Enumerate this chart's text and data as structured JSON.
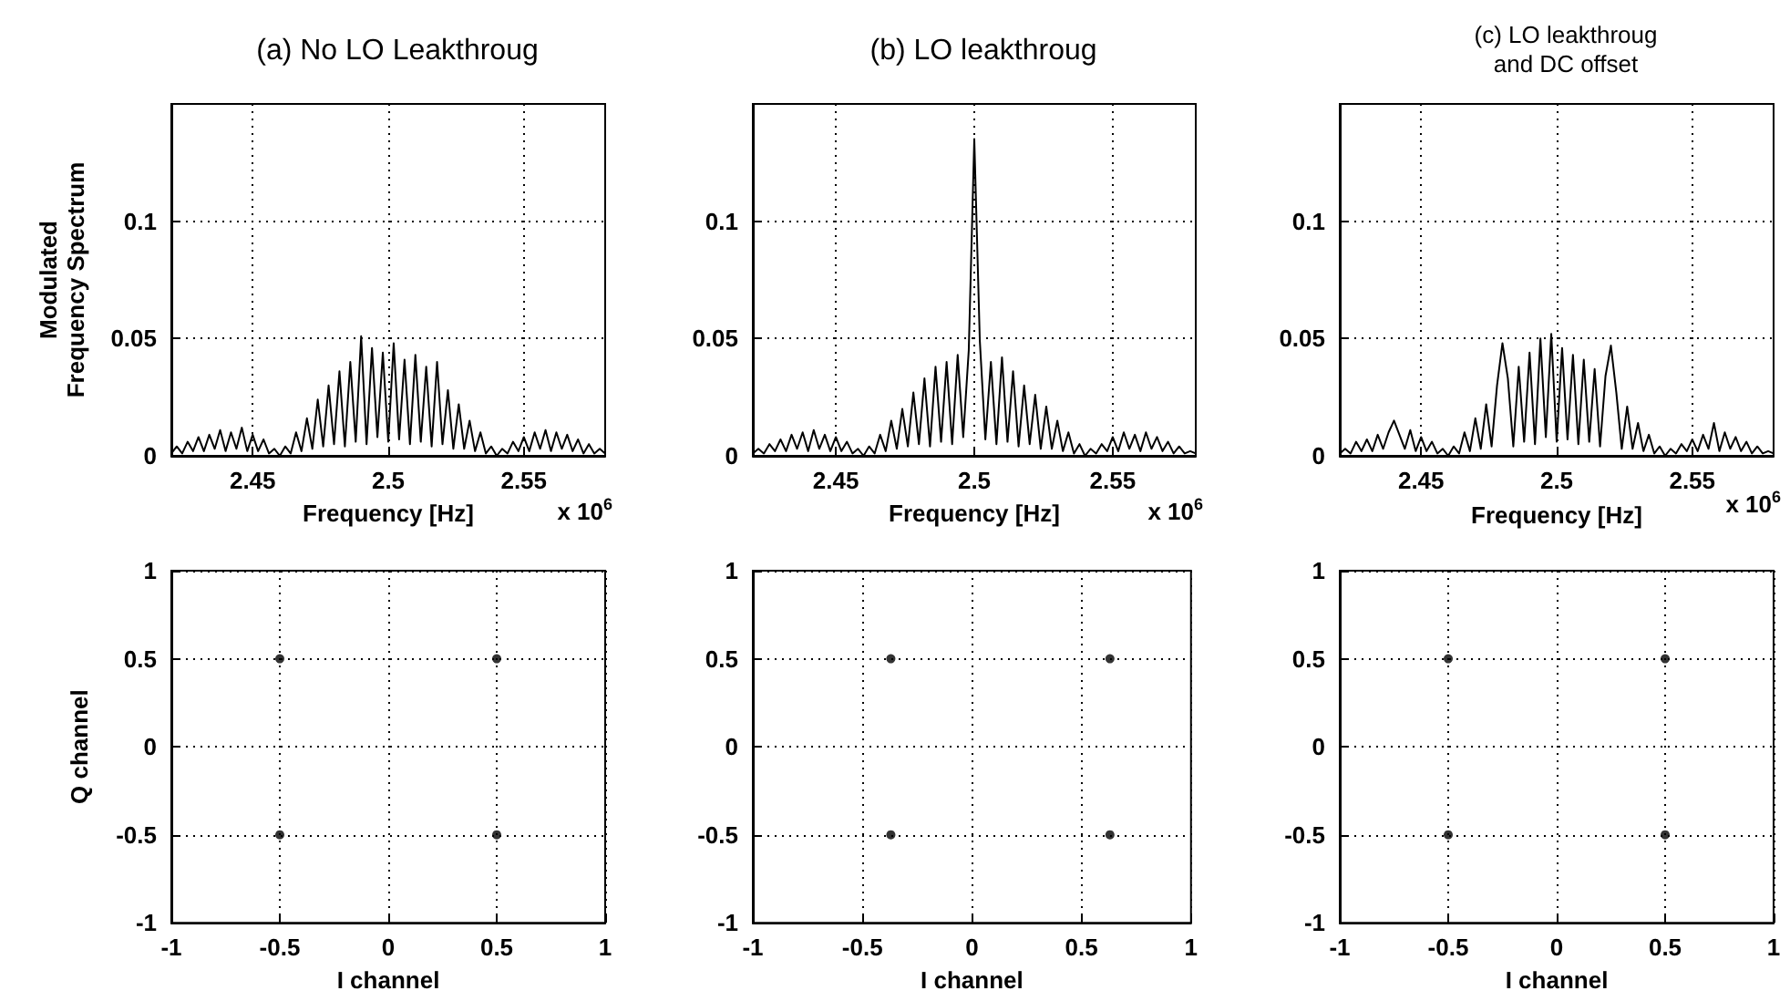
{
  "chart_data": [
    {
      "type": "line",
      "title": "(a) No LO Leakthroug",
      "xlabel": "Frequency [Hz]",
      "ylabel": "Modulated\nFrequency Spectrum",
      "annotations": [
        "x 10$^{6}$"
      ],
      "xlim": [
        2.42,
        2.58
      ],
      "xticks": [
        2.45,
        2.5,
        2.55
      ],
      "ylim": [
        0,
        0.15
      ],
      "yticks": [
        0,
        0.05,
        0.1
      ],
      "grid": true,
      "series": [
        {
          "color": "#000000",
          "x": [
            2.42,
            2.422,
            2.424,
            2.426,
            2.428,
            2.43,
            2.432,
            2.434,
            2.436,
            2.438,
            2.44,
            2.442,
            2.444,
            2.446,
            2.448,
            2.45,
            2.452,
            2.454,
            2.456,
            2.458,
            2.46,
            2.462,
            2.464,
            2.466,
            2.468,
            2.47,
            2.472,
            2.474,
            2.476,
            2.478,
            2.48,
            2.482,
            2.484,
            2.486,
            2.488,
            2.49,
            2.492,
            2.494,
            2.496,
            2.498,
            2.5,
            2.502,
            2.504,
            2.506,
            2.508,
            2.51,
            2.512,
            2.514,
            2.516,
            2.518,
            2.52,
            2.522,
            2.524,
            2.526,
            2.528,
            2.53,
            2.532,
            2.534,
            2.536,
            2.538,
            2.54,
            2.542,
            2.544,
            2.546,
            2.548,
            2.55,
            2.552,
            2.554,
            2.556,
            2.558,
            2.56,
            2.562,
            2.564,
            2.566,
            2.568,
            2.57,
            2.572,
            2.574,
            2.576,
            2.578,
            2.58
          ],
          "values": [
            0.001,
            0.004,
            0.001,
            0.006,
            0.002,
            0.008,
            0.002,
            0.009,
            0.003,
            0.011,
            0.002,
            0.01,
            0.003,
            0.012,
            0.002,
            0.009,
            0.002,
            0.007,
            0.001,
            0.003,
            0.0,
            0.004,
            0.001,
            0.01,
            0.002,
            0.016,
            0.003,
            0.024,
            0.004,
            0.03,
            0.005,
            0.036,
            0.004,
            0.04,
            0.006,
            0.051,
            0.005,
            0.046,
            0.008,
            0.044,
            0.006,
            0.048,
            0.007,
            0.041,
            0.005,
            0.043,
            0.006,
            0.038,
            0.004,
            0.04,
            0.005,
            0.028,
            0.003,
            0.022,
            0.003,
            0.015,
            0.002,
            0.01,
            0.001,
            0.004,
            0.0,
            0.003,
            0.001,
            0.006,
            0.002,
            0.008,
            0.002,
            0.01,
            0.003,
            0.011,
            0.002,
            0.01,
            0.003,
            0.009,
            0.002,
            0.007,
            0.001,
            0.005,
            0.001,
            0.003,
            0.001
          ]
        }
      ]
    },
    {
      "type": "line",
      "title": "(b) LO leakthroug",
      "xlabel": "Frequency [Hz]",
      "annotations": [
        "x 10$^{6}$"
      ],
      "xlim": [
        2.42,
        2.58
      ],
      "xticks": [
        2.45,
        2.5,
        2.55
      ],
      "ylim": [
        0,
        0.15
      ],
      "yticks": [
        0,
        0.05,
        0.1
      ],
      "grid": true,
      "series": [
        {
          "color": "#000000",
          "x": [
            2.42,
            2.422,
            2.424,
            2.426,
            2.428,
            2.43,
            2.432,
            2.434,
            2.436,
            2.438,
            2.44,
            2.442,
            2.444,
            2.446,
            2.448,
            2.45,
            2.452,
            2.454,
            2.456,
            2.458,
            2.46,
            2.462,
            2.464,
            2.466,
            2.468,
            2.47,
            2.472,
            2.474,
            2.476,
            2.478,
            2.48,
            2.482,
            2.484,
            2.486,
            2.488,
            2.49,
            2.492,
            2.494,
            2.496,
            2.498,
            2.5,
            2.502,
            2.504,
            2.506,
            2.508,
            2.51,
            2.512,
            2.514,
            2.516,
            2.518,
            2.52,
            2.522,
            2.524,
            2.526,
            2.528,
            2.53,
            2.532,
            2.534,
            2.536,
            2.538,
            2.54,
            2.542,
            2.544,
            2.546,
            2.548,
            2.55,
            2.552,
            2.554,
            2.556,
            2.558,
            2.56,
            2.562,
            2.564,
            2.566,
            2.568,
            2.57,
            2.572,
            2.574,
            2.576,
            2.578,
            2.58
          ],
          "values": [
            0.001,
            0.003,
            0.001,
            0.005,
            0.002,
            0.007,
            0.002,
            0.009,
            0.003,
            0.01,
            0.002,
            0.011,
            0.003,
            0.009,
            0.002,
            0.008,
            0.002,
            0.006,
            0.001,
            0.003,
            0.0,
            0.004,
            0.001,
            0.009,
            0.002,
            0.015,
            0.003,
            0.02,
            0.004,
            0.027,
            0.005,
            0.033,
            0.004,
            0.038,
            0.006,
            0.04,
            0.005,
            0.043,
            0.008,
            0.045,
            0.135,
            0.049,
            0.007,
            0.04,
            0.005,
            0.042,
            0.006,
            0.036,
            0.004,
            0.03,
            0.005,
            0.026,
            0.003,
            0.021,
            0.003,
            0.015,
            0.002,
            0.01,
            0.001,
            0.005,
            0.0,
            0.003,
            0.001,
            0.005,
            0.002,
            0.008,
            0.002,
            0.01,
            0.003,
            0.009,
            0.002,
            0.01,
            0.003,
            0.008,
            0.002,
            0.006,
            0.001,
            0.004,
            0.001,
            0.002,
            0.001
          ]
        }
      ]
    },
    {
      "type": "line",
      "title": "(c) LO leakthroug\nand DC offset",
      "xlabel": "Frequency [Hz]",
      "annotations": [
        "x 10$^{6}$"
      ],
      "xlim": [
        2.42,
        2.58
      ],
      "xticks": [
        2.45,
        2.5,
        2.55
      ],
      "ylim": [
        0,
        0.15
      ],
      "yticks": [
        0,
        0.05,
        0.1
      ],
      "grid": true,
      "series": [
        {
          "color": "#000000",
          "x": [
            2.42,
            2.422,
            2.424,
            2.426,
            2.428,
            2.43,
            2.432,
            2.434,
            2.436,
            2.438,
            2.44,
            2.442,
            2.444,
            2.446,
            2.448,
            2.45,
            2.452,
            2.454,
            2.456,
            2.458,
            2.46,
            2.462,
            2.464,
            2.466,
            2.468,
            2.47,
            2.472,
            2.474,
            2.476,
            2.478,
            2.48,
            2.482,
            2.484,
            2.486,
            2.488,
            2.49,
            2.492,
            2.494,
            2.496,
            2.498,
            2.5,
            2.502,
            2.504,
            2.506,
            2.508,
            2.51,
            2.512,
            2.514,
            2.516,
            2.518,
            2.52,
            2.522,
            2.524,
            2.526,
            2.528,
            2.53,
            2.532,
            2.534,
            2.536,
            2.538,
            2.54,
            2.542,
            2.544,
            2.546,
            2.548,
            2.55,
            2.552,
            2.554,
            2.556,
            2.558,
            2.56,
            2.562,
            2.564,
            2.566,
            2.568,
            2.57,
            2.572,
            2.574,
            2.576,
            2.578,
            2.58
          ],
          "values": [
            0.001,
            0.003,
            0.001,
            0.006,
            0.002,
            0.007,
            0.002,
            0.009,
            0.003,
            0.01,
            0.015,
            0.009,
            0.003,
            0.011,
            0.002,
            0.008,
            0.002,
            0.006,
            0.001,
            0.003,
            0.0,
            0.004,
            0.001,
            0.01,
            0.002,
            0.016,
            0.003,
            0.022,
            0.004,
            0.03,
            0.048,
            0.033,
            0.004,
            0.038,
            0.006,
            0.044,
            0.005,
            0.05,
            0.008,
            0.052,
            0.006,
            0.046,
            0.007,
            0.043,
            0.005,
            0.041,
            0.006,
            0.037,
            0.004,
            0.034,
            0.047,
            0.027,
            0.003,
            0.021,
            0.003,
            0.014,
            0.002,
            0.009,
            0.001,
            0.004,
            0.0,
            0.003,
            0.001,
            0.005,
            0.002,
            0.007,
            0.002,
            0.009,
            0.003,
            0.014,
            0.002,
            0.01,
            0.003,
            0.008,
            0.002,
            0.006,
            0.001,
            0.004,
            0.001,
            0.002,
            0.001
          ]
        }
      ]
    },
    {
      "type": "scatter",
      "xlabel": "I channel",
      "ylabel": "Q channel",
      "marker": "circle",
      "xlim": [
        -1,
        1
      ],
      "xticks": [
        -1,
        -0.5,
        0,
        0.5,
        1
      ],
      "ylim": [
        -1,
        1
      ],
      "yticks": [
        -1,
        -0.5,
        0,
        0.5,
        1
      ],
      "grid": true,
      "series": [
        {
          "color": "#000000",
          "x": [
            -0.5,
            0.5,
            -0.5,
            0.5
          ],
          "values": [
            0.5,
            0.5,
            -0.5,
            -0.5
          ]
        }
      ]
    },
    {
      "type": "scatter",
      "xlabel": "I channel",
      "marker": "circle",
      "xlim": [
        -1,
        1
      ],
      "xticks": [
        -1,
        -0.5,
        0,
        0.5,
        1
      ],
      "ylim": [
        -1,
        1
      ],
      "yticks": [
        -1,
        -0.5,
        0,
        0.5,
        1
      ],
      "grid": true,
      "series": [
        {
          "color": "#000000",
          "x": [
            -0.37,
            0.63,
            -0.37,
            0.63
          ],
          "values": [
            0.5,
            0.5,
            -0.5,
            -0.5
          ]
        }
      ]
    },
    {
      "type": "scatter",
      "xlabel": "I channel",
      "marker": "circle",
      "xlim": [
        -1,
        1
      ],
      "xticks": [
        -1,
        -0.5,
        0,
        0.5,
        1
      ],
      "ylim": [
        -1,
        1
      ],
      "yticks": [
        -1,
        -0.5,
        0,
        0.5,
        1
      ],
      "grid": true,
      "series": [
        {
          "color": "#000000",
          "x": [
            -0.5,
            0.5,
            -0.5,
            0.5
          ],
          "values": [
            0.5,
            0.5,
            -0.5,
            -0.5
          ]
        }
      ]
    }
  ]
}
